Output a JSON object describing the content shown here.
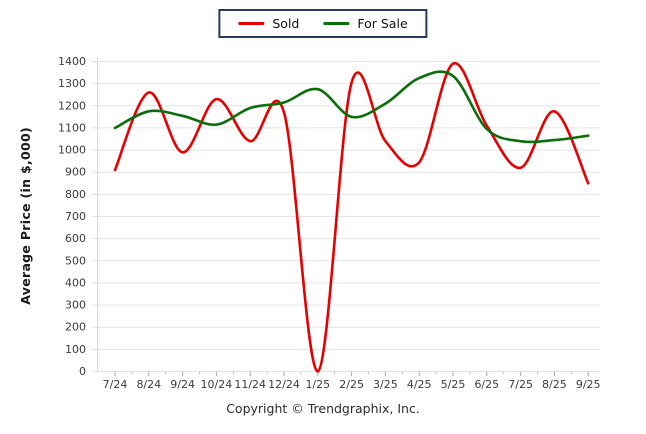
{
  "page": {
    "footer": "Copyright © Trendgraphix, Inc."
  },
  "legend": {
    "border_color": "#2a3a5c"
  },
  "chart_data": {
    "type": "line",
    "smooth": true,
    "grid": true,
    "legend_position": "top-center",
    "title": "",
    "xlabel": "",
    "ylabel": "Average Price (in $,000)",
    "ylim": [
      0,
      1400
    ],
    "ytick_step": 100,
    "categories": [
      "7/24",
      "8/24",
      "9/24",
      "10/24",
      "11/24",
      "12/24",
      "1/25",
      "2/25",
      "3/25",
      "4/25",
      "5/25",
      "6/25",
      "7/25",
      "8/25",
      "9/25"
    ],
    "series": [
      {
        "name": "Sold",
        "color": "#e60000",
        "values": [
          910,
          1260,
          990,
          1230,
          1040,
          1170,
          0,
          1305,
          1040,
          945,
          1390,
          1110,
          920,
          1175,
          850
        ]
      },
      {
        "name": "For Sale",
        "color": "#0b6e0b",
        "values": [
          1100,
          1175,
          1155,
          1115,
          1190,
          1215,
          1275,
          1150,
          1210,
          1325,
          1335,
          1095,
          1040,
          1045,
          1065
        ]
      }
    ]
  }
}
